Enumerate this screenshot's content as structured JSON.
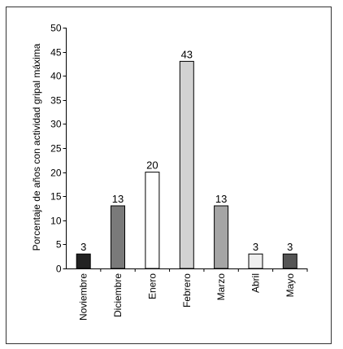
{
  "chart_data": {
    "type": "bar",
    "categories": [
      "Noviembre",
      "Diciembre",
      "Enero",
      "Febrero",
      "Marzo",
      "Abril",
      "Mayo"
    ],
    "values": [
      3,
      13,
      20,
      43,
      13,
      3,
      3
    ],
    "data_labels": [
      "3",
      "13",
      "20",
      "43",
      "13",
      "3",
      "3"
    ],
    "bar_colors": [
      "#222222",
      "#7a7a7a",
      "#ffffff",
      "#d2d2d2",
      "#a5a5a5",
      "#efefef",
      "#555555"
    ],
    "title": "",
    "xlabel": "",
    "ylabel": "Porcentaje de años con actividad gripal máxima",
    "ylim": [
      0,
      50
    ],
    "yticks": [
      0,
      5,
      10,
      15,
      20,
      25,
      30,
      35,
      40,
      45,
      50
    ],
    "grid": false,
    "legend": "none"
  }
}
